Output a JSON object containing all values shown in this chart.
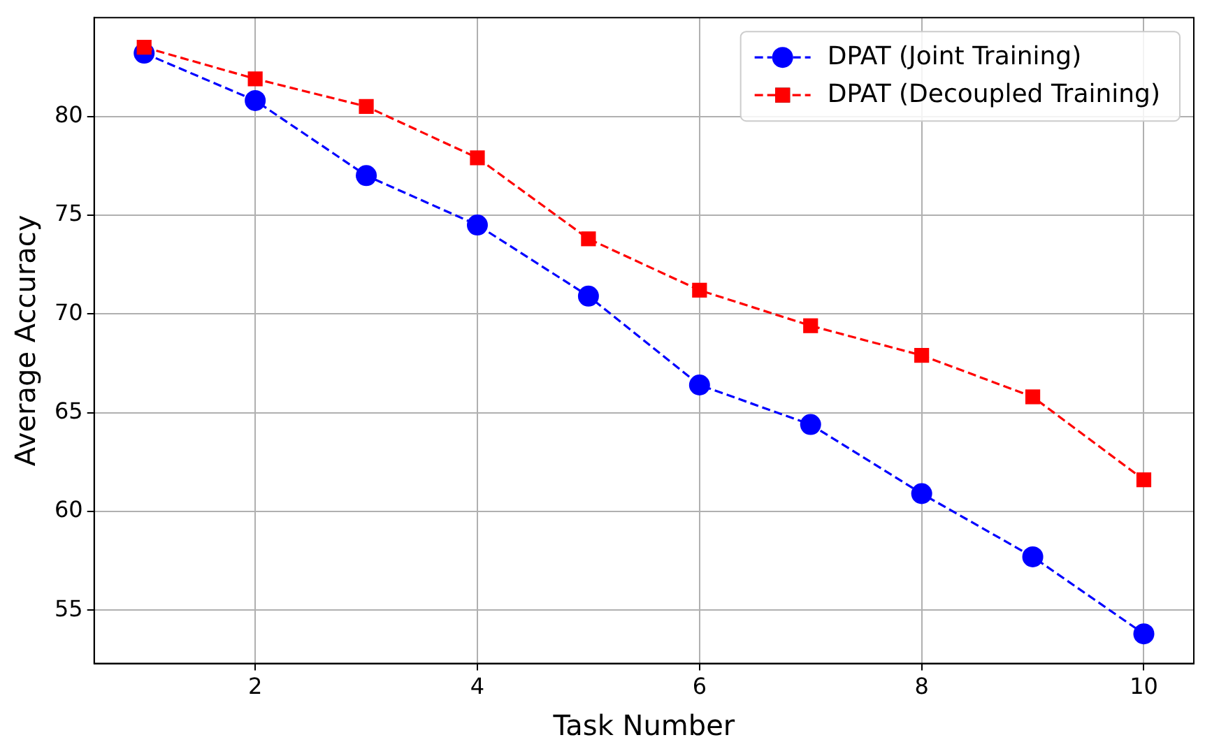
{
  "chart_data": {
    "type": "line",
    "xlabel": "Task Number",
    "ylabel": "Average Accuracy",
    "x": [
      1,
      2,
      3,
      4,
      5,
      6,
      7,
      8,
      9,
      10
    ],
    "series": [
      {
        "name": "DPAT (Joint Training)",
        "color": "#0000ff",
        "marker": "circle",
        "values": [
          83.2,
          80.8,
          77.0,
          74.5,
          70.9,
          66.4,
          64.4,
          60.9,
          57.7,
          53.8
        ]
      },
      {
        "name": "DPAT (Decoupled Training)",
        "color": "#ff0000",
        "marker": "square",
        "values": [
          83.5,
          81.9,
          80.5,
          77.9,
          73.8,
          71.2,
          69.4,
          67.9,
          65.8,
          61.6
        ]
      }
    ],
    "xlim": [
      0.55,
      10.45
    ],
    "xticks": [
      2,
      4,
      6,
      8,
      10
    ],
    "ylim": [
      52.3,
      85.0
    ],
    "yticks": [
      55,
      60,
      65,
      70,
      75,
      80
    ],
    "grid": true,
    "legend": "top right",
    "line_style": "dashed"
  }
}
